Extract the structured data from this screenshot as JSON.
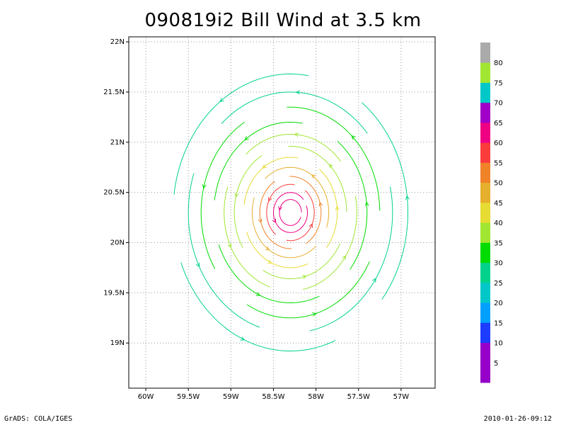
{
  "chart_data": {
    "type": "streamline",
    "title": "090819i2 Bill Wind at 3.5 km",
    "xlim": [
      -60.2,
      -56.6
    ],
    "ylim": [
      18.55,
      22.05
    ],
    "x_ticks": [
      {
        "value": -60.0,
        "label": "60W"
      },
      {
        "value": -59.5,
        "label": "59.5W"
      },
      {
        "value": -59.0,
        "label": "59W"
      },
      {
        "value": -58.5,
        "label": "58.5W"
      },
      {
        "value": -58.0,
        "label": "58W"
      },
      {
        "value": -57.5,
        "label": "57.5W"
      },
      {
        "value": -57.0,
        "label": "57W"
      }
    ],
    "y_ticks": [
      {
        "value": 19.0,
        "label": "19N"
      },
      {
        "value": 19.5,
        "label": "19.5N"
      },
      {
        "value": 20.0,
        "label": "20N"
      },
      {
        "value": 20.5,
        "label": "20.5N"
      },
      {
        "value": 21.0,
        "label": "21N"
      },
      {
        "value": 21.5,
        "label": "21.5N"
      },
      {
        "value": 22.0,
        "label": "22N"
      }
    ],
    "grid": true,
    "center": {
      "lon": -58.3,
      "lat": 20.3
    },
    "colorbar": {
      "levels": [
        5,
        10,
        15,
        20,
        25,
        30,
        35,
        40,
        45,
        50,
        55,
        60,
        65,
        70,
        75,
        80
      ],
      "colors": [
        "#9600c8",
        "#9600c8",
        "#1e3cff",
        "#00a0ff",
        "#00c8c8",
        "#00d28c",
        "#00dc00",
        "#a0e632",
        "#e6dc32",
        "#e6af2d",
        "#f08228",
        "#fa3c3c",
        "#f00082",
        "#a000c8",
        "#00c8c8",
        "#a0e632",
        "#aaaaaa"
      ]
    },
    "rings": [
      {
        "r": 0.13,
        "speed": 65
      },
      {
        "r": 0.2,
        "speed": 62
      },
      {
        "r": 0.28,
        "speed": 57
      },
      {
        "r": 0.36,
        "speed": 53
      },
      {
        "r": 0.45,
        "speed": 48
      },
      {
        "r": 0.55,
        "speed": 44
      },
      {
        "r": 0.66,
        "speed": 40
      },
      {
        "r": 0.78,
        "speed": 37
      },
      {
        "r": 0.9,
        "speed": 34
      },
      {
        "r": 1.05,
        "speed": 31
      },
      {
        "r": 1.2,
        "speed": 28
      },
      {
        "r": 1.38,
        "speed": 26
      }
    ]
  },
  "footer": {
    "left": "GrADS: COLA/IGES",
    "right": "2010-01-26-09:12"
  }
}
